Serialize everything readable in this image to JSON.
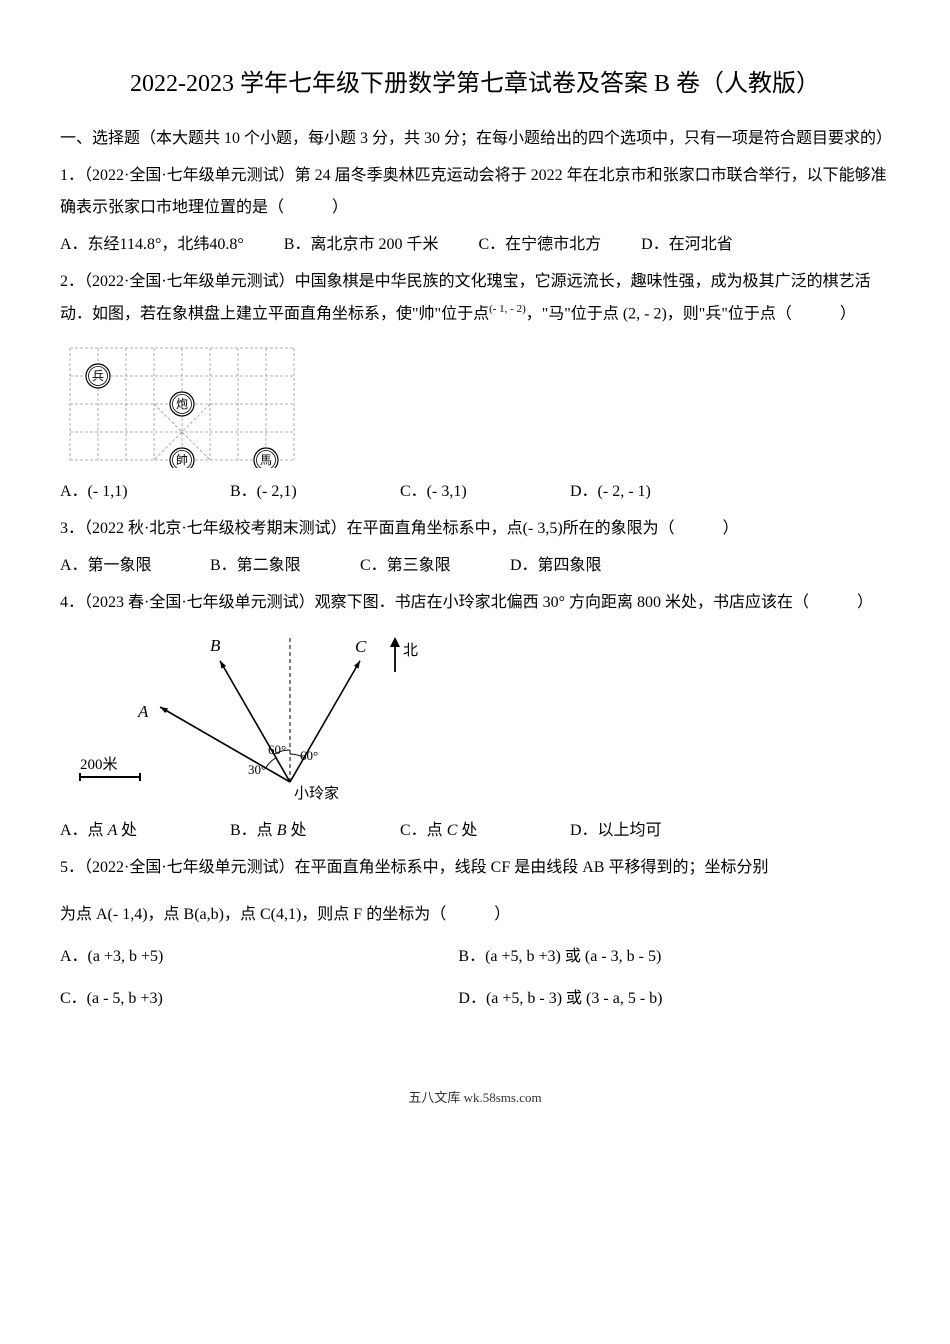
{
  "title": "2022-2023 学年七年级下册数学第七章试卷及答案 B 卷（人教版）",
  "section1": "一、选择题（本大题共 10 个小题，每小题 3 分，共 30 分；在每小题给出的四个选项中，只有一项是符合题目要求的）",
  "q1": {
    "text": "1．（2022·全国·七年级单元测试）第 24 届冬季奥林匹克运动会将于 2022 年在北京市和张家口市联合举行，以下能够准确表示张家口市地理位置的是（　　　）",
    "A": "A．东经114.8°，北纬40.8°",
    "B": "B．离北京市 200 千米",
    "C": "C．在宁德市北方",
    "D": "D．在河北省"
  },
  "q2": {
    "text1": "2．（2022·全国·七年级单元测试）中国象棋是中华民族的文化瑰宝，它源远流长，趣味性强，成为极其广泛的棋艺活动．如图，若在象棋盘上建立平面直角坐标系，使\"帅\"位于点",
    "coord1": "(- 1, - 2)",
    "mid": "，\"马\"位于点",
    "coord2": "(2, - 2)",
    "text2": "，则\"兵\"位于点（　　　）",
    "A": "A．(- 1,1)",
    "B": "B．(- 2,1)",
    "C": "C．(- 3,1)",
    "D": "D．(- 2, - 1)"
  },
  "q3": {
    "text": "3．（2022 秋·北京·七年级校考期末测试）在平面直角坐标系中，点(- 3,5)所在的象限为（　　　）",
    "A": "A．第一象限",
    "B": "B．第二象限",
    "C": "C．第三象限",
    "D": "D．第四象限"
  },
  "q4": {
    "text": "4．（2023 春·全国·七年级单元测试）观察下图．书店在小玲家北偏西 30° 方向距离 800 米处，书店应该在（　　　）",
    "A": "A．点 A 处",
    "B": "B．点 B 处",
    "C": "C．点 C 处",
    "D": "D．以上均可"
  },
  "q5": {
    "text1": "5．（2022·全国·七年级单元测试）在平面直角坐标系中，线段 CF 是由线段 AB 平移得到的；坐标分别",
    "text2": "为点 A(- 1,4)，点 B(a,b)，点 C(4,1)，则点 F 的坐标为（　　　）",
    "A": "A．(a +3, b +5)",
    "B": "B．(a +5, b +3) 或 (a - 3, b - 5)",
    "C": "C．(a - 5, b +3)",
    "D": "D．(a +5, b - 3) 或 (3 - a, 5 - b)"
  },
  "footer": "五八文库 wk.58sms.com",
  "chess": {
    "pieces": {
      "bing": "兵",
      "pao": "炮",
      "shuai": "帥",
      "ma": "馬"
    },
    "grid_color": "#999999",
    "dash": "3,2",
    "stroke_width": 0.8
  },
  "diagram": {
    "labels": {
      "B": "B",
      "C": "C",
      "A": "A",
      "north": "北",
      "home": "小玲家",
      "scale": "200米",
      "a30": "30°",
      "a60a": "60°",
      "a60b": "60°"
    },
    "line_color": "#000000",
    "fontsize": 15
  }
}
